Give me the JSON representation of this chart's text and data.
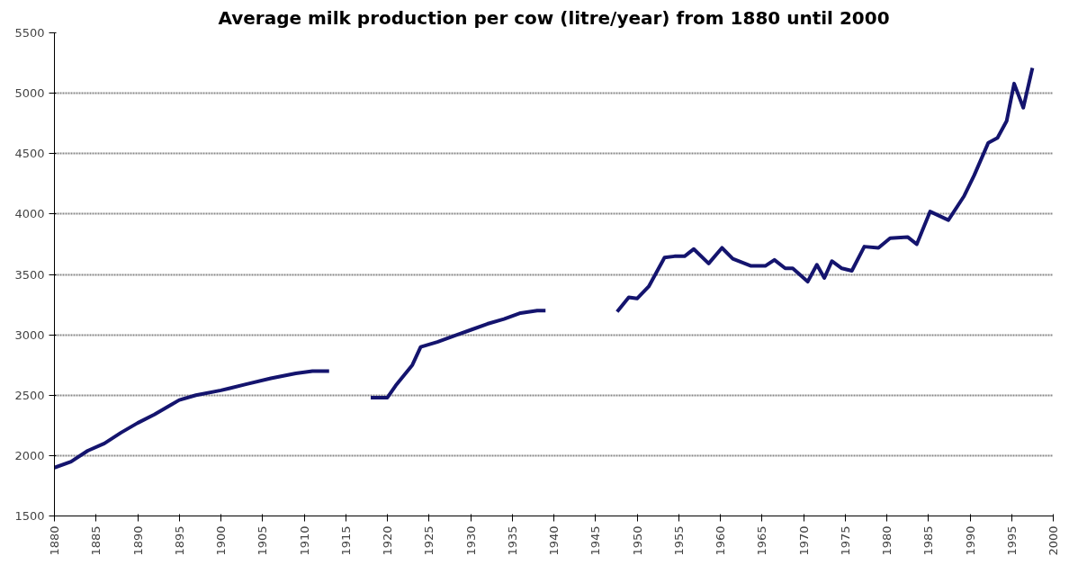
{
  "chart_data": {
    "type": "line",
    "title": "Average milk production per cow (litre/year) from 1880 until 2000",
    "x": [
      1880,
      1882,
      1884,
      1886,
      1888,
      1890,
      1892,
      1894,
      1895,
      1897,
      1900,
      1903,
      1906,
      1909,
      1911,
      1913,
      1916,
      1918,
      1920,
      1921,
      1923,
      1924,
      1926,
      1928,
      1930,
      1932,
      1934,
      1936,
      1938,
      1939,
      1944,
      1947.6,
      1949,
      1950,
      1951.4,
      1953.3,
      1954.5,
      1955.7,
      1956.8,
      1958.6,
      1960.2,
      1961.5,
      1963.7,
      1965.4,
      1966.5,
      1967.8,
      1968.7,
      1970.5,
      1971.6,
      1972.5,
      1973.4,
      1974.6,
      1975.8,
      1977.3,
      1979,
      1980.4,
      1982.5,
      1983.6,
      1985.2,
      1987.4,
      1989.3,
      1990.5,
      1992.2,
      1993.3,
      1994.4,
      1995.3,
      1996.4,
      1997.5
    ],
    "series": [
      {
        "color": "#14146e",
        "values": [
          1900,
          1950,
          2040,
          2100,
          2190,
          2270,
          2340,
          2420,
          2460,
          2500,
          2540,
          2590,
          2640,
          2680,
          2700,
          2700,
          null,
          2480,
          2480,
          2580,
          2750,
          2900,
          2940,
          2990,
          3040,
          3090,
          3130,
          3180,
          3200,
          3200,
          null,
          3190,
          3310,
          3300,
          3400,
          3640,
          3650,
          3650,
          3710,
          3590,
          3720,
          3630,
          3570,
          3570,
          3620,
          3550,
          3550,
          3440,
          3580,
          3470,
          3610,
          3550,
          3530,
          3730,
          3720,
          3800,
          3810,
          3750,
          4020,
          3950,
          4150,
          4320,
          4590,
          4630,
          4770,
          5080,
          4880,
          5210
        ]
      }
    ],
    "xlim": [
      1880,
      2000
    ],
    "xticks": [
      1880,
      1885,
      1890,
      1895,
      1900,
      1905,
      1910,
      1915,
      1920,
      1925,
      1930,
      1935,
      1940,
      1945,
      1950,
      1955,
      1960,
      1965,
      1970,
      1975,
      1980,
      1985,
      1990,
      1995,
      2000
    ],
    "ylim": [
      1500,
      5500
    ],
    "yticks": [
      1500,
      2000,
      2500,
      3000,
      3500,
      4000,
      4500,
      5000,
      5500
    ],
    "grid": "y",
    "marker": "none",
    "line_style": "solid"
  }
}
